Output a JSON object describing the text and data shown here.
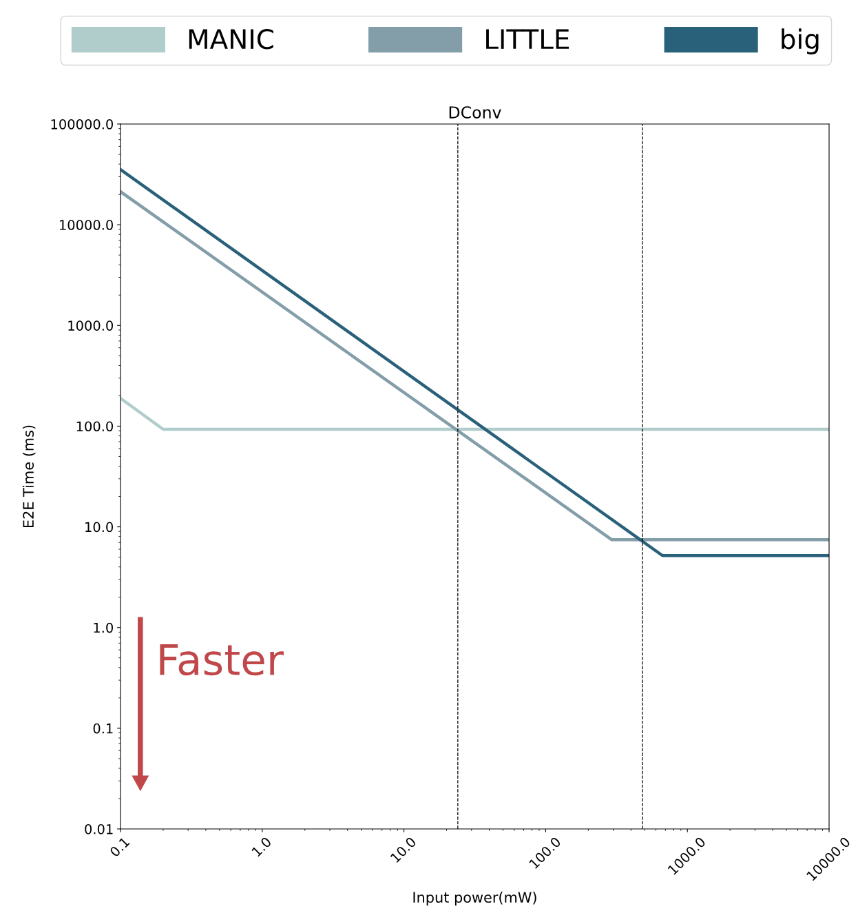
{
  "chart_data": {
    "type": "line",
    "title": "DConv",
    "xlabel": "Input power(mW)",
    "ylabel": "E2E Time (ms)",
    "series": [
      {
        "name": "MANIC",
        "color": "#b0cdcb",
        "x": [
          0.1,
          0.2,
          10000
        ],
        "values": [
          189,
          93,
          93
        ]
      },
      {
        "name": "LITTLE",
        "color": "#849ea9",
        "x": [
          0.1,
          292,
          10000
        ],
        "values": [
          21300,
          7.46,
          7.46
        ]
      },
      {
        "name": "big",
        "color": "#2a617a",
        "x": [
          0.1,
          667,
          10000
        ],
        "values": [
          35300,
          5.19,
          5.19
        ]
      }
    ],
    "log": "xy",
    "xlim": [
      0.1,
      10000
    ],
    "ylim": [
      0.01,
      100000
    ],
    "xticks": [
      {
        "value": 0.1,
        "label": "0.1"
      },
      {
        "value": 1,
        "label": "1.0"
      },
      {
        "value": 10,
        "label": "10.0"
      },
      {
        "value": 100,
        "label": "100.0"
      },
      {
        "value": 1000,
        "label": "1000.0"
      },
      {
        "value": 10000,
        "label": "10000.0"
      }
    ],
    "yticks": [
      {
        "value": 0.01,
        "label": "0.01"
      },
      {
        "value": 0.1,
        "label": "0.1"
      },
      {
        "value": 1,
        "label": "1.0"
      },
      {
        "value": 10,
        "label": "10.0"
      },
      {
        "value": 100,
        "label": "100.0"
      },
      {
        "value": 1000,
        "label": "1000.0"
      },
      {
        "value": 10000,
        "label": "10000.0"
      },
      {
        "value": 100000,
        "label": "100000.0"
      }
    ],
    "ref_lines": [
      {
        "axis": "x",
        "value": 24,
        "color": "#000000",
        "line_style": "dashed"
      },
      {
        "axis": "x",
        "value": 482,
        "color": "#000000",
        "line_style": "dashed"
      }
    ],
    "annotations": [
      "Faster"
    ],
    "grid": false,
    "legend": "top",
    "marker": "none",
    "line_style": "solid"
  }
}
